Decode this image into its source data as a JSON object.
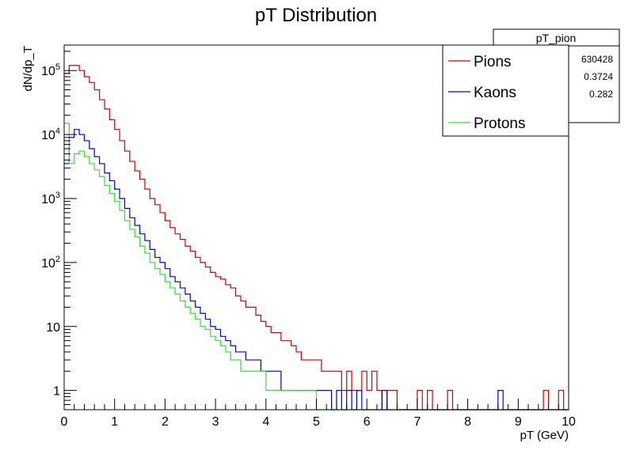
{
  "chart_data": {
    "type": "line",
    "title": "pT Distribution",
    "xlabel": "pT (GeV)",
    "ylabel": "dN/dp_T",
    "xlim": [
      0,
      10
    ],
    "ylim": [
      0.5,
      250000
    ],
    "yscale": "log",
    "x_ticks": [
      0,
      1,
      2,
      3,
      4,
      5,
      6,
      7,
      8,
      9,
      10
    ],
    "y_ticks": [
      {
        "value": 1,
        "label": "1"
      },
      {
        "value": 10,
        "label": "10"
      },
      {
        "value": 100,
        "label": "10^2"
      },
      {
        "value": 1000,
        "label": "10^3"
      },
      {
        "value": 10000,
        "label": "10^4"
      },
      {
        "value": 100000,
        "label": "10^5"
      }
    ],
    "grid": false,
    "legend_position": "top-right",
    "bins": {
      "count": 100,
      "min": 0,
      "max": 10
    },
    "series": [
      {
        "name": "Pions",
        "color": "#cc0000",
        "values": [
          90000,
          120000,
          120000,
          100000,
          80000,
          65000,
          50000,
          35000,
          25000,
          17000,
          12000,
          8000,
          5500,
          3800,
          2700,
          2000,
          1400,
          1000,
          800,
          600,
          450,
          350,
          280,
          230,
          180,
          150,
          120,
          100,
          85,
          70,
          60,
          55,
          45,
          40,
          30,
          25,
          20,
          20,
          15,
          12,
          10,
          8,
          8,
          6,
          6,
          5,
          4,
          3,
          3,
          3,
          3,
          2,
          2,
          2,
          2,
          1,
          2,
          1,
          1,
          2,
          1,
          2,
          1,
          0,
          1,
          1,
          0,
          0,
          0,
          0,
          1,
          0,
          1,
          0,
          0,
          0,
          1,
          0,
          0,
          0,
          0,
          0,
          0,
          0,
          0,
          0,
          0,
          0,
          0,
          0,
          0,
          0,
          0,
          0,
          0,
          1,
          0,
          0,
          1,
          0
        ]
      },
      {
        "name": "Kaons",
        "color": "#0000cc",
        "values": [
          3500,
          9000,
          12000,
          10000,
          8000,
          6000,
          4500,
          3500,
          2500,
          1900,
          1400,
          1000,
          700,
          500,
          380,
          280,
          220,
          160,
          120,
          100,
          80,
          60,
          50,
          40,
          32,
          25,
          20,
          16,
          13,
          10,
          9,
          7,
          6,
          5,
          4,
          4,
          3,
          3,
          3,
          2,
          2,
          2,
          2,
          1,
          1,
          1,
          1,
          1,
          1,
          1,
          1,
          1,
          1,
          0,
          1,
          0,
          1,
          0,
          1,
          0,
          0,
          0,
          0,
          1,
          0,
          0,
          0,
          0,
          0,
          0,
          0,
          0,
          0,
          0,
          0,
          0,
          0,
          0,
          0,
          0,
          0,
          0,
          0,
          0,
          0,
          0,
          1,
          0,
          0,
          0,
          0,
          0,
          0,
          0,
          0,
          0,
          0,
          0,
          0,
          0
        ]
      },
      {
        "name": "Protons",
        "color": "#33dd33",
        "values": [
          15000,
          3500,
          5000,
          5500,
          4500,
          3500,
          2800,
          2200,
          1600,
          1200,
          900,
          650,
          450,
          330,
          250,
          180,
          140,
          100,
          80,
          65,
          50,
          40,
          32,
          25,
          20,
          16,
          13,
          10,
          9,
          7,
          6,
          5,
          4,
          3,
          3,
          2,
          2,
          2,
          2,
          2,
          1,
          1,
          1,
          1,
          1,
          1,
          1,
          1,
          1,
          1,
          0,
          0,
          0,
          0,
          0,
          0,
          0,
          0,
          0,
          0,
          0,
          0,
          0,
          0,
          0,
          0,
          0,
          0,
          0,
          0,
          0,
          0,
          0,
          0,
          0,
          0,
          0,
          0,
          0,
          0,
          0,
          0,
          0,
          0,
          0,
          0,
          0,
          0,
          0,
          0,
          0,
          0,
          0,
          0,
          0,
          0,
          0,
          0,
          0,
          0
        ]
      }
    ],
    "stats_box": {
      "title": "pT_pion",
      "entries": [
        "630428",
        "0.3724",
        "0.282"
      ]
    }
  }
}
